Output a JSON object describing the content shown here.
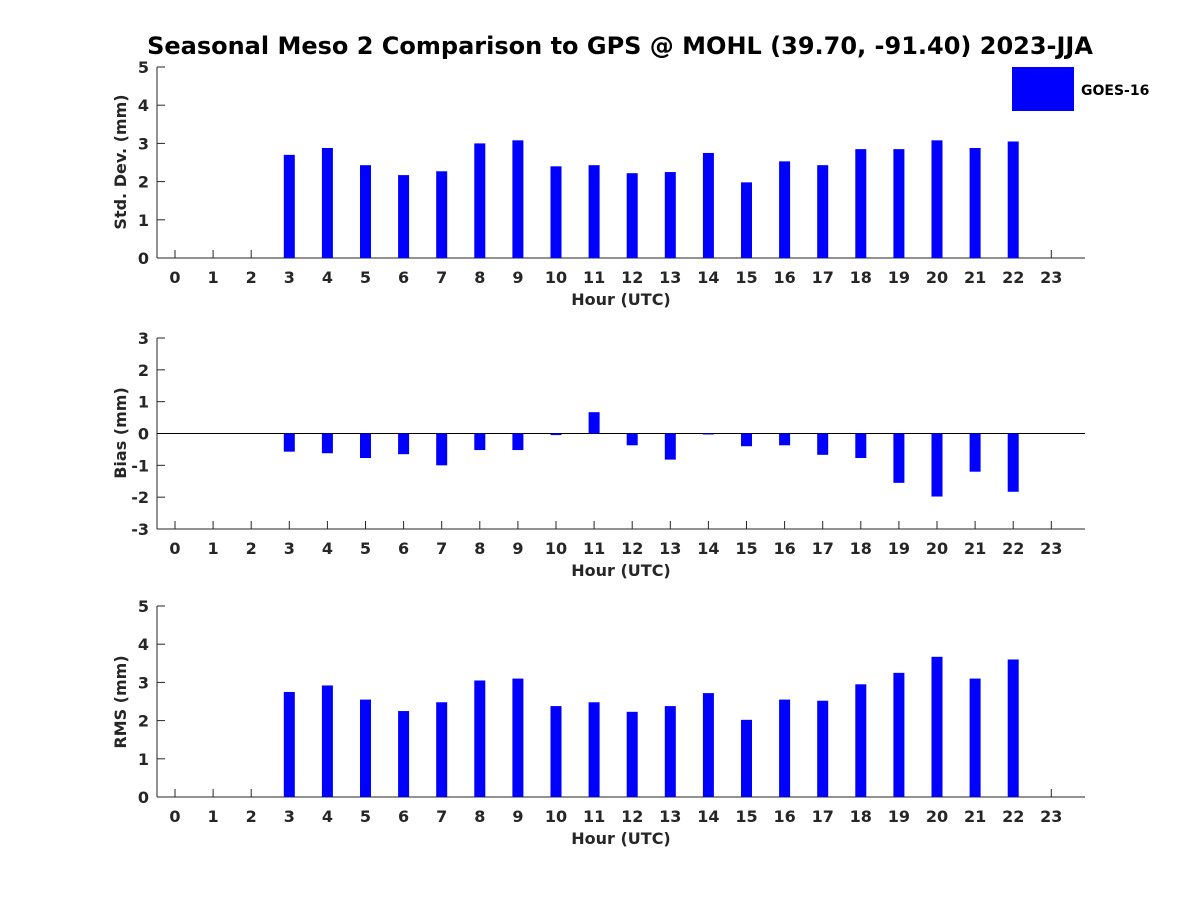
{
  "title": "Seasonal Meso 2 Comparison to GPS @ MOHL (39.70, -91.40) 2023-JJA",
  "legend": {
    "label": "GOES-16",
    "placement": "top-right"
  },
  "colors": {
    "bar": "#0000ff",
    "axis": "#262626",
    "zero_line": "#000000"
  },
  "chart_data": [
    {
      "type": "bar",
      "name": "std-dev",
      "title": "Seasonal Meso 2 Comparison to GPS @ MOHL (39.70, -91.40) 2023-JJA",
      "xlabel": "Hour (UTC)",
      "ylabel": "Std. Dev. (mm)",
      "ylim": [
        0,
        5
      ],
      "yticks": [
        0,
        1,
        2,
        3,
        4,
        5
      ],
      "categories": [
        "0",
        "1",
        "2",
        "3",
        "4",
        "5",
        "6",
        "7",
        "8",
        "9",
        "10",
        "11",
        "12",
        "13",
        "14",
        "15",
        "16",
        "17",
        "18",
        "19",
        "20",
        "21",
        "22",
        "23"
      ],
      "series": [
        {
          "name": "GOES-16",
          "values": [
            null,
            null,
            null,
            2.7,
            2.88,
            2.43,
            2.17,
            2.27,
            3.0,
            3.08,
            2.4,
            2.43,
            2.22,
            2.25,
            2.75,
            1.98,
            2.53,
            2.43,
            2.85,
            2.85,
            3.08,
            2.88,
            3.05,
            null
          ]
        }
      ]
    },
    {
      "type": "bar",
      "name": "bias",
      "xlabel": "Hour (UTC)",
      "ylabel": "Bias (mm)",
      "ylim": [
        -3,
        3
      ],
      "yticks": [
        -3,
        -2,
        -1,
        0,
        1,
        2,
        3
      ],
      "zero_line": true,
      "categories": [
        "0",
        "1",
        "2",
        "3",
        "4",
        "5",
        "6",
        "7",
        "8",
        "9",
        "10",
        "11",
        "12",
        "13",
        "14",
        "15",
        "16",
        "17",
        "18",
        "19",
        "20",
        "21",
        "22",
        "23"
      ],
      "series": [
        {
          "name": "GOES-16",
          "values": [
            null,
            null,
            null,
            -0.57,
            -0.62,
            -0.77,
            -0.65,
            -1.0,
            -0.52,
            -0.52,
            -0.05,
            0.67,
            -0.37,
            -0.82,
            -0.02,
            -0.4,
            -0.37,
            -0.67,
            -0.77,
            -1.55,
            -1.98,
            -1.2,
            -1.83,
            null
          ]
        }
      ]
    },
    {
      "type": "bar",
      "name": "rms",
      "xlabel": "Hour (UTC)",
      "ylabel": "RMS (mm)",
      "ylim": [
        0,
        5
      ],
      "yticks": [
        0,
        1,
        2,
        3,
        4,
        5
      ],
      "categories": [
        "0",
        "1",
        "2",
        "3",
        "4",
        "5",
        "6",
        "7",
        "8",
        "9",
        "10",
        "11",
        "12",
        "13",
        "14",
        "15",
        "16",
        "17",
        "18",
        "19",
        "20",
        "21",
        "22",
        "23"
      ],
      "series": [
        {
          "name": "GOES-16",
          "values": [
            null,
            null,
            null,
            2.75,
            2.92,
            2.55,
            2.25,
            2.48,
            3.05,
            3.1,
            2.38,
            2.48,
            2.23,
            2.38,
            2.72,
            2.02,
            2.55,
            2.52,
            2.95,
            3.25,
            3.67,
            3.1,
            3.6,
            null
          ]
        }
      ]
    }
  ]
}
